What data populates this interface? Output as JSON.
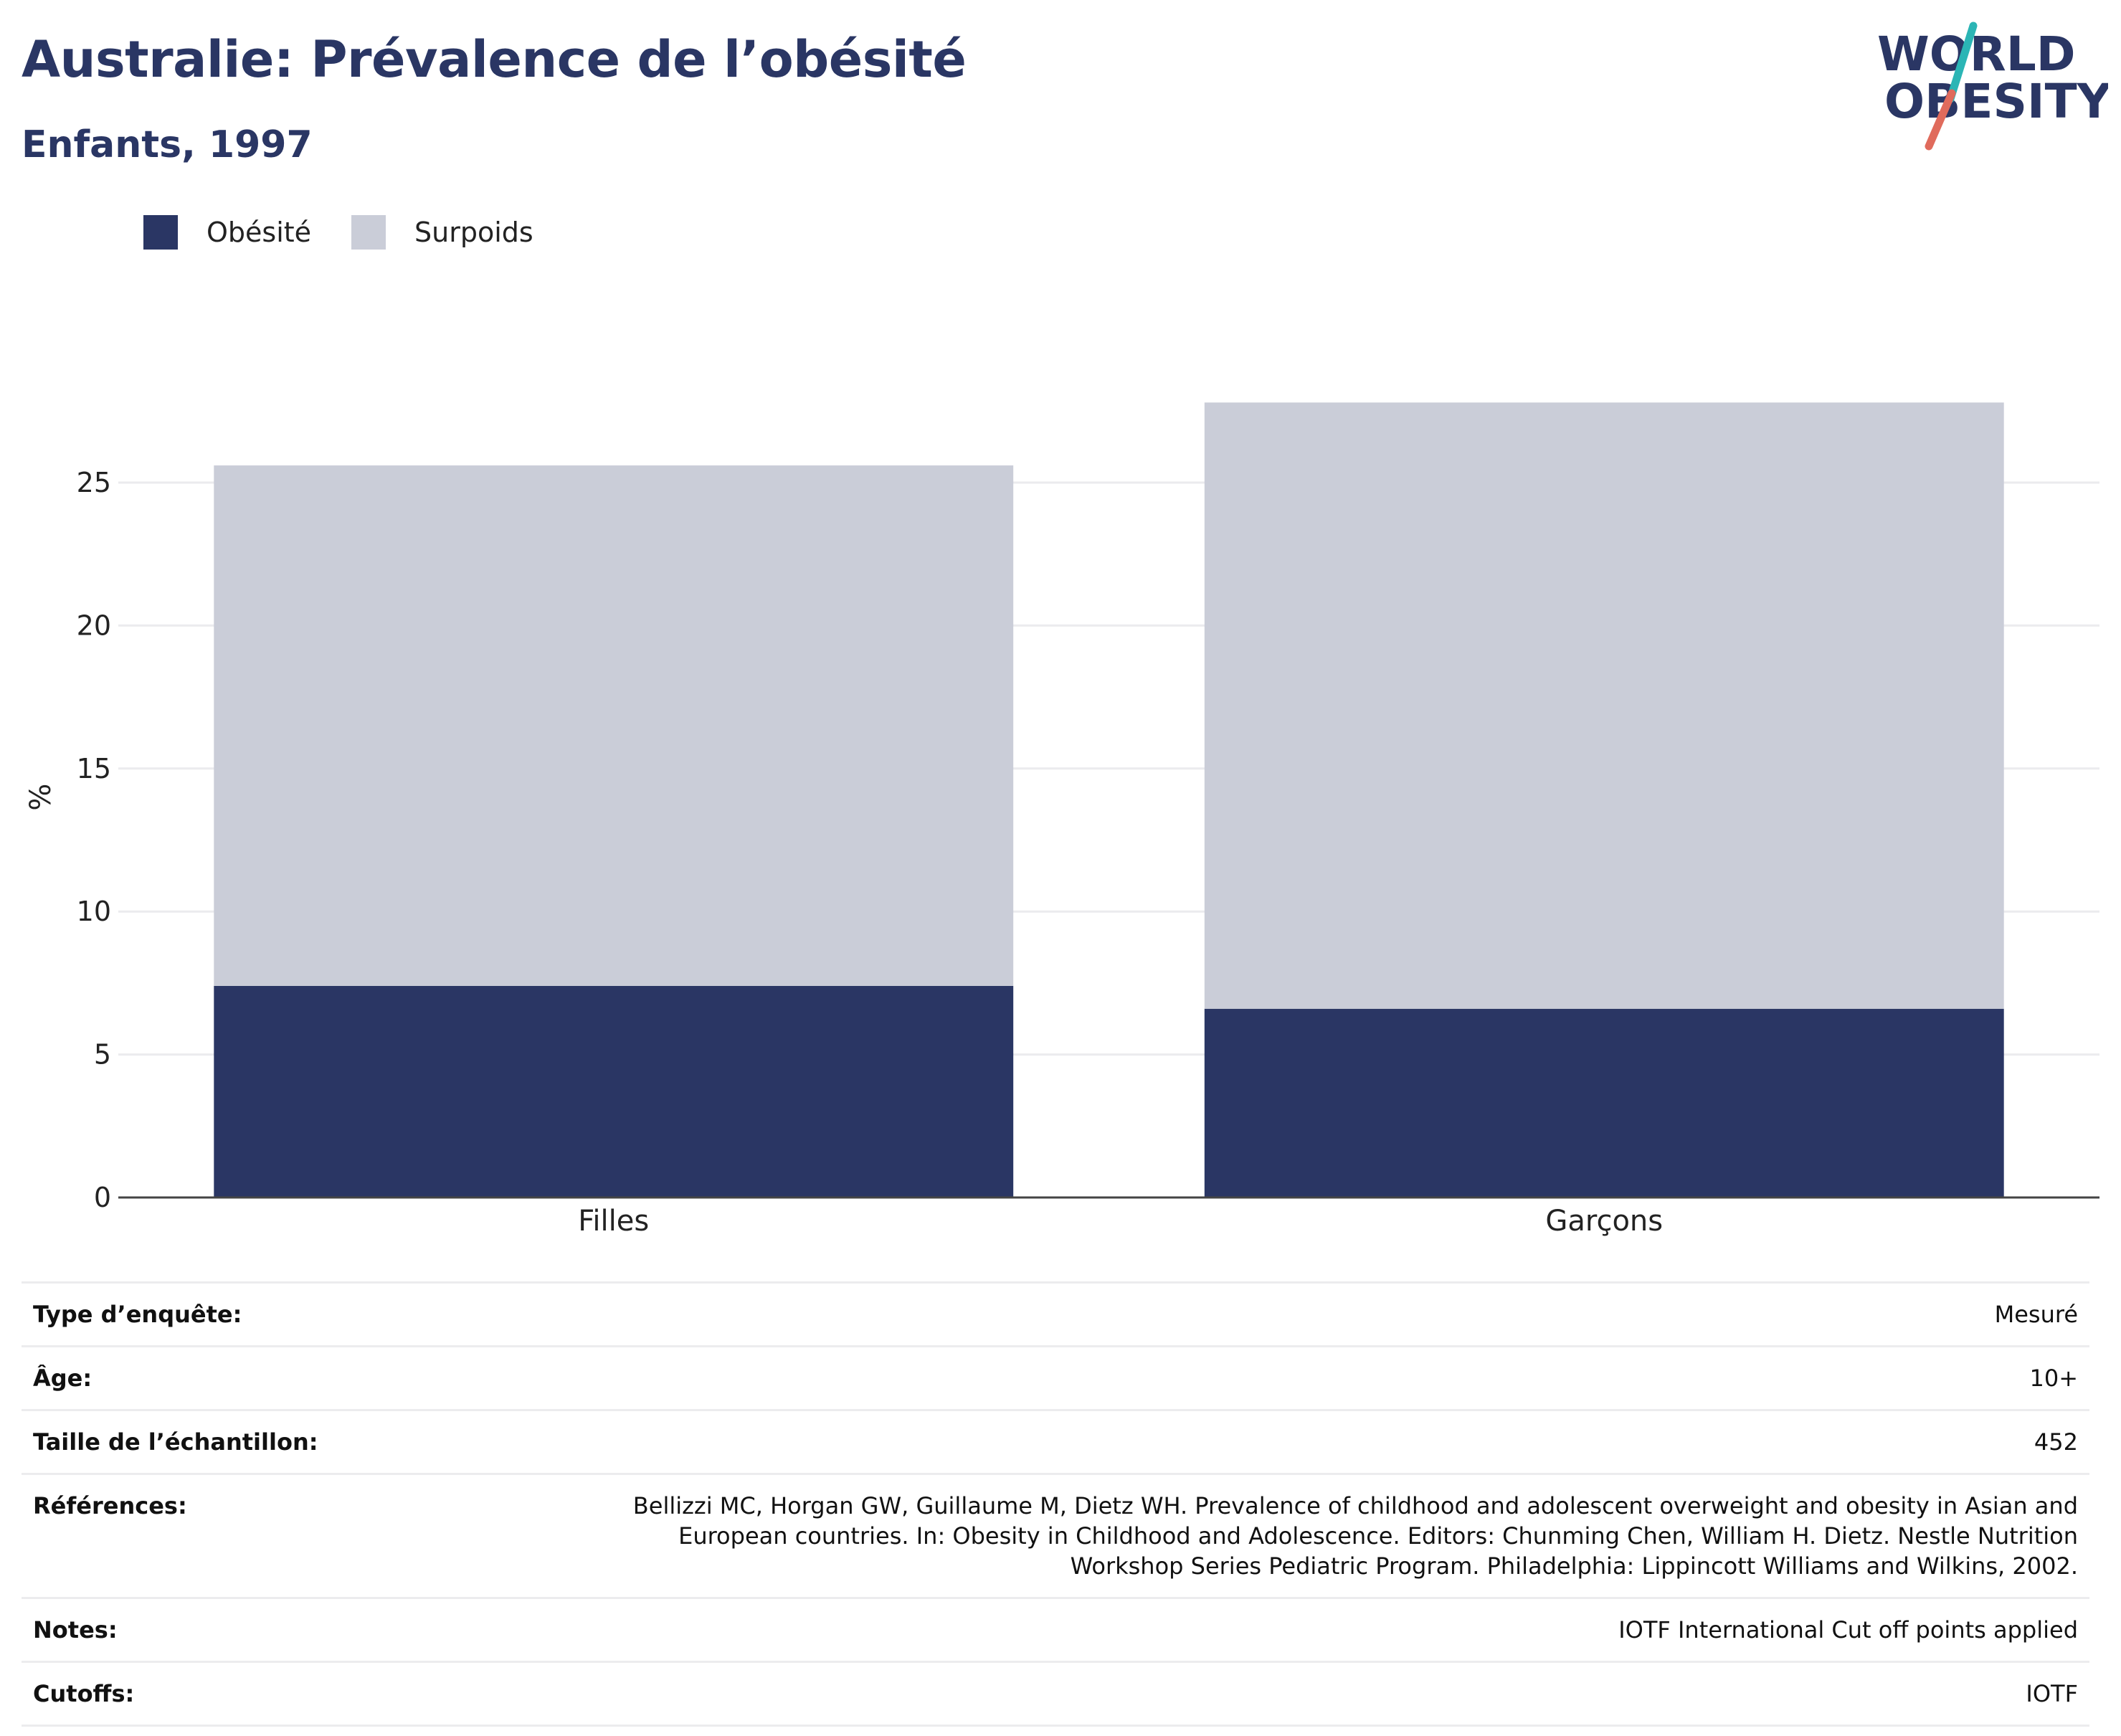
{
  "header": {
    "title": "Australie: Prévalence de l’obésité",
    "subtitle": "Enfants, 1997"
  },
  "logo": {
    "line1": "WORLD",
    "line2": "OBESITY",
    "colors": {
      "text": "#2a3664",
      "slash_teal": "#2bb5b5",
      "slash_coral": "#e06b5c"
    }
  },
  "chart_data": {
    "type": "bar",
    "stacked": true,
    "categories": [
      "Filles",
      "Garçons"
    ],
    "series": [
      {
        "name": "Obésité",
        "color": "#2a3664",
        "values": [
          7.4,
          6.6
        ]
      },
      {
        "name": "Surpoids",
        "color": "#cacdd8",
        "values": [
          18.2,
          21.2
        ]
      }
    ],
    "ylabel": "%",
    "ylim": [
      0,
      28
    ],
    "yticks": [
      0,
      5,
      10,
      15,
      20,
      25
    ],
    "grid": true,
    "legend_position": "top-left"
  },
  "meta": [
    {
      "key": "Type d’enquête:",
      "value": "Mesuré"
    },
    {
      "key": "Âge:",
      "value": "10+"
    },
    {
      "key": "Taille de l’échantillon:",
      "value": "452"
    },
    {
      "key": "Références:",
      "value": "Bellizzi MC, Horgan GW, Guillaume M, Dietz WH. Prevalence of childhood and adolescent overweight and obesity in Asian and European countries. In: Obesity in Childhood and Adolescence. Editors: Chunming Chen, William H. Dietz. Nestle Nutrition Workshop Series Pediatric Program. Philadelphia: Lippincott Williams and Wilkins, 2002."
    },
    {
      "key": "Notes:",
      "value": "IOTF International Cut off points applied"
    },
    {
      "key": "Cutoffs:",
      "value": "IOTF"
    }
  ]
}
